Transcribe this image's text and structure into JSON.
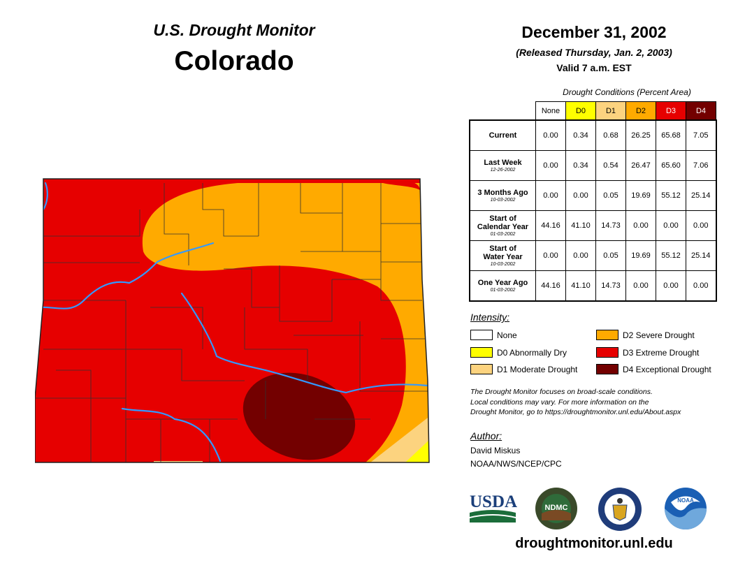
{
  "header": {
    "monitor_title": "U.S. Drought Monitor",
    "state": "Colorado",
    "date": "December 31, 2002",
    "released": "(Released Thursday, Jan. 2, 2003)",
    "valid": "Valid 7 a.m. EST"
  },
  "table": {
    "caption": "Drought Conditions (Percent Area)",
    "columns": [
      "None",
      "D0",
      "D1",
      "D2",
      "D3",
      "D4"
    ],
    "column_colors": [
      "#ffffff",
      "#ffff00",
      "#fcd37f",
      "#ffaa00",
      "#e60000",
      "#730000"
    ],
    "rows": [
      {
        "label": "Current",
        "label2": "",
        "date": "",
        "values": [
          "0.00",
          "0.34",
          "0.68",
          "26.25",
          "65.68",
          "7.05"
        ]
      },
      {
        "label": "Last Week",
        "label2": "",
        "date": "12-26-2002",
        "values": [
          "0.00",
          "0.34",
          "0.54",
          "26.47",
          "65.60",
          "7.06"
        ]
      },
      {
        "label": "3 Months Ago",
        "label2": "",
        "date": "10-03-2002",
        "values": [
          "0.00",
          "0.00",
          "0.05",
          "19.69",
          "55.12",
          "25.14"
        ]
      },
      {
        "label": "Start of",
        "label2": "Calendar Year",
        "date": "01-03-2002",
        "values": [
          "44.16",
          "41.10",
          "14.73",
          "0.00",
          "0.00",
          "0.00"
        ]
      },
      {
        "label": "Start of",
        "label2": "Water Year",
        "date": "10-03-2002",
        "values": [
          "0.00",
          "0.00",
          "0.05",
          "19.69",
          "55.12",
          "25.14"
        ]
      },
      {
        "label": "One Year Ago",
        "label2": "",
        "date": "01-03-2002",
        "values": [
          "44.16",
          "41.10",
          "14.73",
          "0.00",
          "0.00",
          "0.00"
        ]
      }
    ]
  },
  "legend": {
    "title": "Intensity:",
    "items": [
      {
        "label": "None",
        "color": "#ffffff"
      },
      {
        "label": "D0 Abnormally Dry",
        "color": "#ffff00"
      },
      {
        "label": "D1 Moderate Drought",
        "color": "#fcd37f"
      },
      {
        "label": "D2 Severe Drought",
        "color": "#ffaa00"
      },
      {
        "label": "D3 Extreme Drought",
        "color": "#e60000"
      },
      {
        "label": "D4 Exceptional Drought",
        "color": "#730000"
      }
    ]
  },
  "note": {
    "line1": "The Drought Monitor focuses on broad-scale conditions.",
    "line2": "Local conditions may vary. For more information on the",
    "line3": "Drought Monitor, go to https://droughtmonitor.unl.edu/About.aspx"
  },
  "author": {
    "title": "Author:",
    "name": "David Miskus",
    "org": "NOAA/NWS/NCEP/CPC"
  },
  "logos": {
    "usda": "USDA",
    "ndmc": "NDMC",
    "noaa": "NOAA"
  },
  "website": "droughtmonitor.unl.edu",
  "colors": {
    "d2": "#ffaa00",
    "d3": "#e60000",
    "d4": "#730000",
    "d1": "#fcd37f",
    "d0": "#ffff00",
    "river": "#3399ff"
  }
}
